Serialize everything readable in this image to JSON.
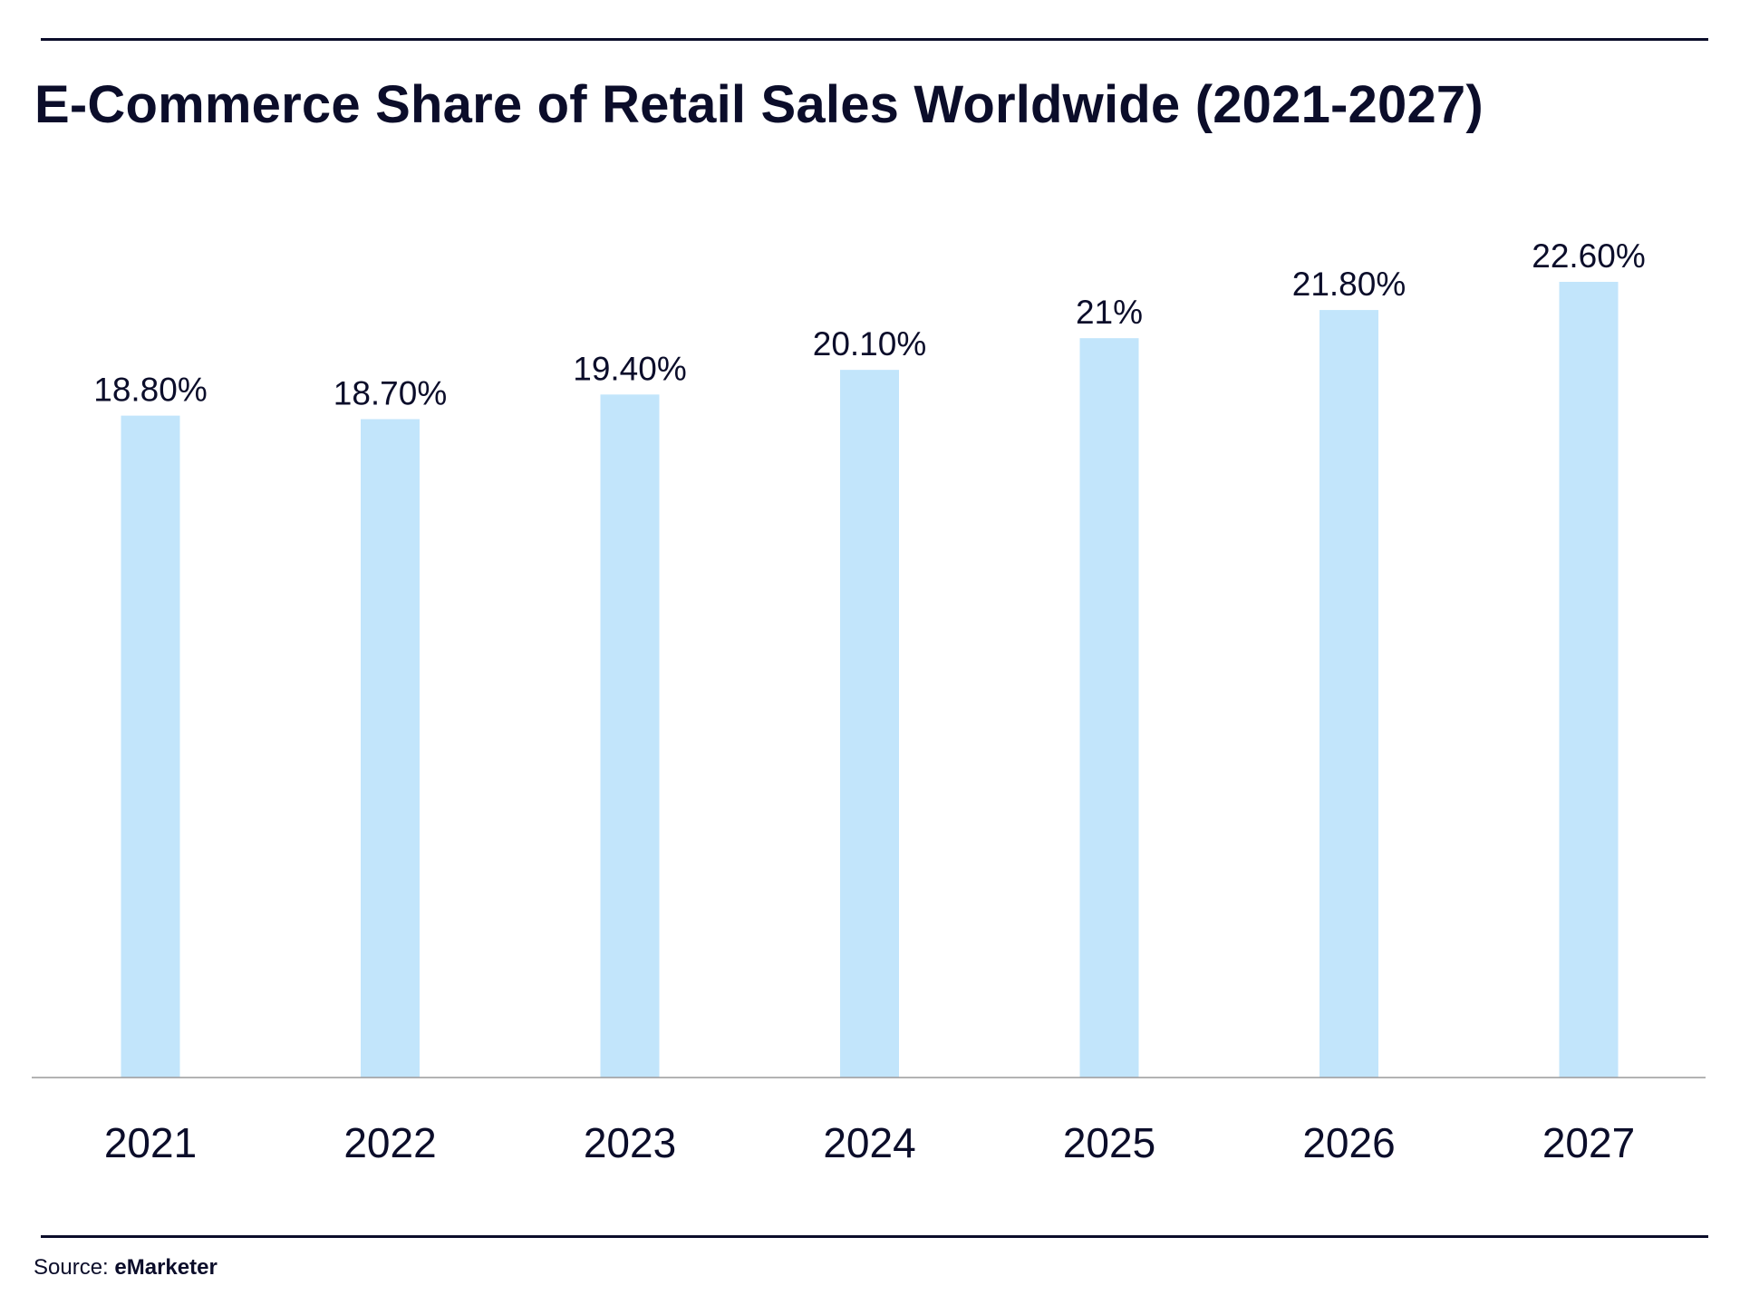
{
  "title": "E-Commerce Share of Retail Sales Worldwide (2021-2027)",
  "source": {
    "label": "Source:",
    "name": "eMarketer"
  },
  "colors": {
    "bar": "#c2e5fb",
    "text": "#0b0d2a",
    "axis": "#9a9a9a"
  },
  "chart_data": {
    "type": "bar",
    "categories": [
      "2021",
      "2022",
      "2023",
      "2024",
      "2025",
      "2026",
      "2027"
    ],
    "values": [
      18.8,
      18.7,
      19.4,
      20.1,
      21,
      21.8,
      22.6
    ],
    "data_labels": [
      "18.80%",
      "18.70%",
      "19.40%",
      "20.10%",
      "21%",
      "21.80%",
      "22.60%"
    ],
    "ylim": [
      0,
      22.6
    ],
    "grid": false,
    "legend": "none"
  }
}
